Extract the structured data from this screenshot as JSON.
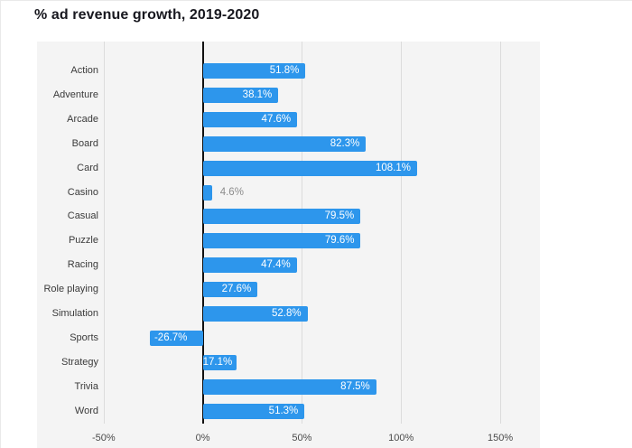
{
  "page": {
    "title": "% ad revenue growth, 2019-2020"
  },
  "colors": {
    "page_bg": "#ffffff",
    "card_border": "#e9e9e9",
    "title_text": "#18181f",
    "plot_bg": "#f4f4f4",
    "grid_line": "#dcdcdc",
    "zero_line": "#111111",
    "bar": "#2d96ec",
    "value_inside": "#ffffff",
    "value_outside": "#8c8c8c",
    "category_text": "#3a3a3a",
    "axis_text": "#4b4b4b"
  },
  "chart_data": {
    "type": "bar",
    "orientation": "horizontal",
    "title": "% ad revenue growth, 2019-2020",
    "categories": [
      "Action",
      "Adventure",
      "Arcade",
      "Board",
      "Card",
      "Casino",
      "Casual",
      "Puzzle",
      "Racing",
      "Role playing",
      "Simulation",
      "Sports",
      "Strategy",
      "Trivia",
      "Word"
    ],
    "values": [
      51.8,
      38.1,
      47.6,
      82.3,
      108.1,
      4.6,
      79.5,
      79.6,
      47.4,
      27.6,
      52.8,
      -26.7,
      17.1,
      87.5,
      51.3
    ],
    "value_labels": [
      "51.8%",
      "38.1%",
      "47.6%",
      "82.3%",
      "108.1%",
      "4.6%",
      "79.5%",
      "79.6%",
      "47.4%",
      "27.6%",
      "52.8%",
      "-26.7%",
      "17.1%",
      "87.5%",
      "51.3%"
    ],
    "xlabel": "",
    "ylabel": "",
    "x_ticks": [
      -50,
      0,
      50,
      100,
      150
    ],
    "x_tick_labels": [
      "-50%",
      "0%",
      "50%",
      "100%",
      "150%"
    ],
    "xlim": [
      -83.6,
      170
    ],
    "grid": true,
    "legend": false
  }
}
